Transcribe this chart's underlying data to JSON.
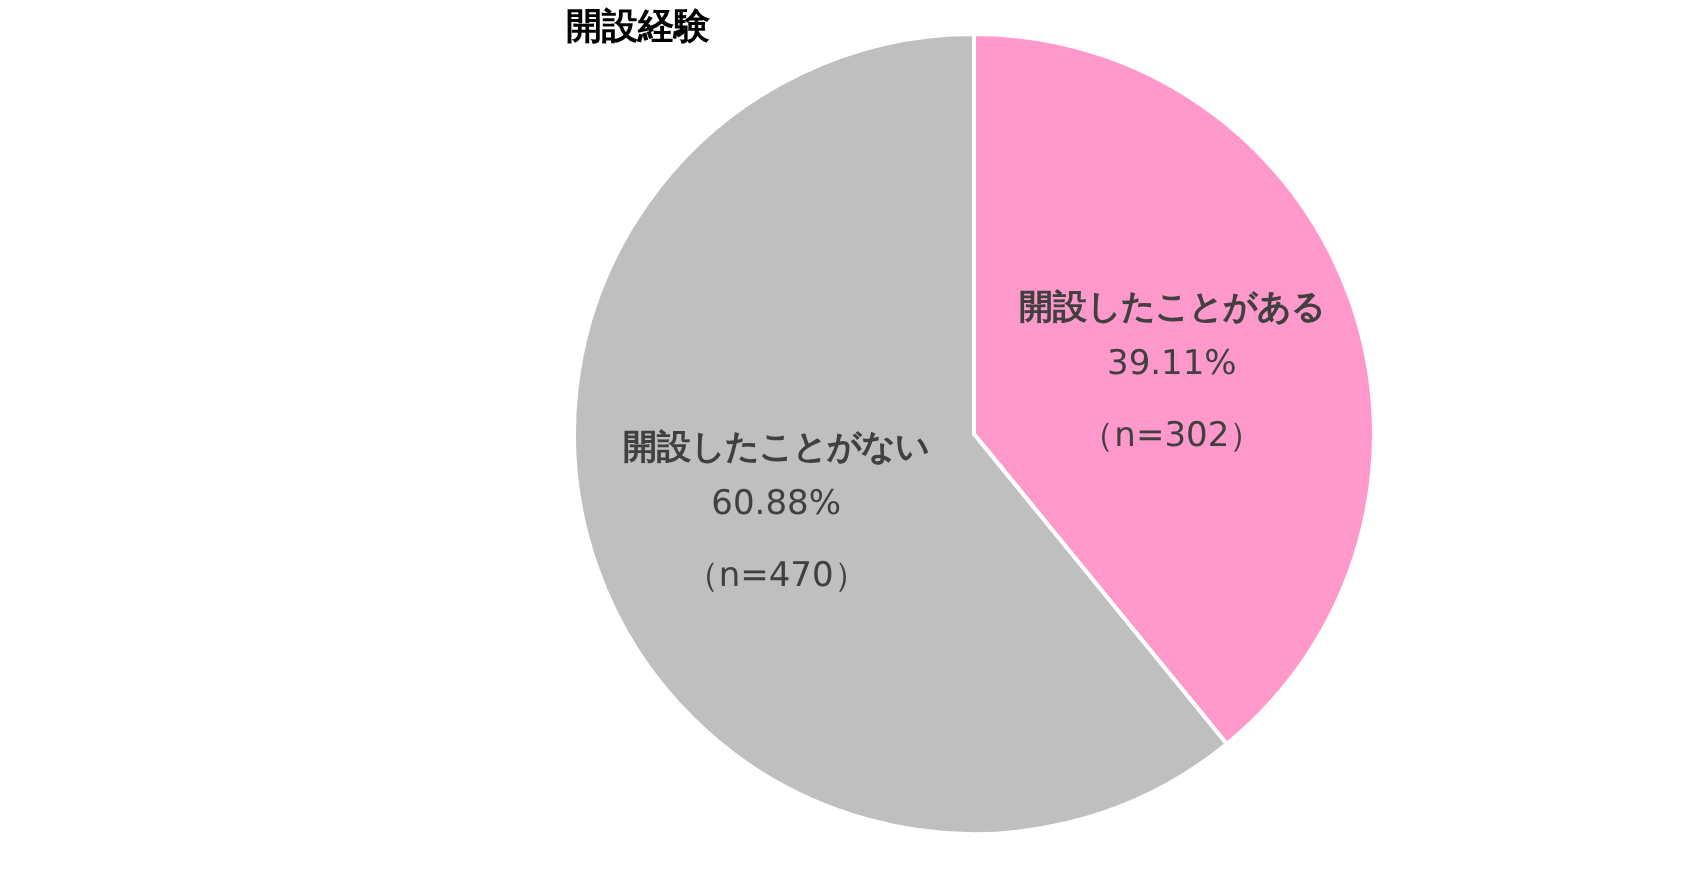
{
  "chart_data": {
    "type": "pie",
    "title": "開設経験",
    "categories": [
      "開設したことがある",
      "開設したことがない"
    ],
    "values": [
      39.11,
      60.88
    ],
    "colors": [
      "#ff99cc",
      "#bfbfbf"
    ],
    "value_labels": [
      "39.11%",
      "60.88%"
    ],
    "annotations": [
      "（n=302）",
      "（n=470）"
    ],
    "legend": false
  }
}
